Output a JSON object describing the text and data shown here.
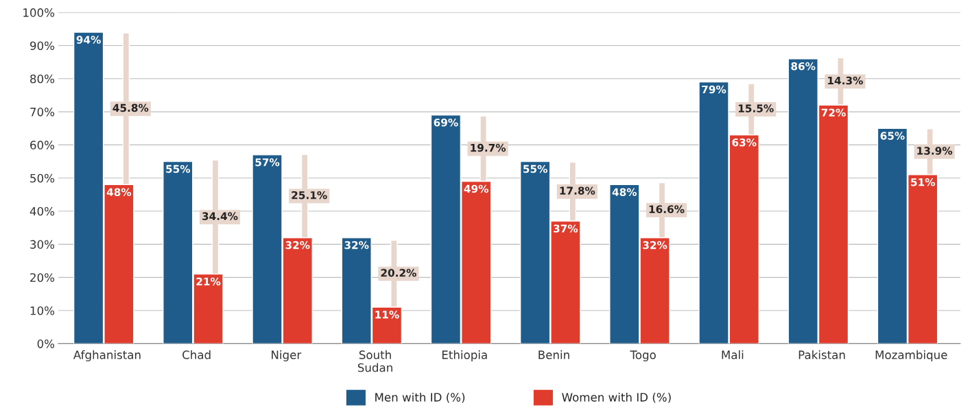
{
  "chart_data": {
    "type": "bar",
    "categories": [
      "Afghanistan",
      "Chad",
      "Niger",
      "South\nSudan",
      "Ethiopia",
      "Benin",
      "Togo",
      "Mali",
      "Pakistan",
      "Mozambique"
    ],
    "series": [
      {
        "name": "Men with ID (%)",
        "color": "#1f5c8b",
        "values": [
          94,
          55,
          57,
          32,
          69,
          55,
          48,
          79,
          86,
          65
        ],
        "value_labels": [
          "94%",
          "55%",
          "57%",
          "32%",
          "69%",
          "55%",
          "48%",
          "79%",
          "86%",
          "65%"
        ]
      },
      {
        "name": "Women with ID (%)",
        "color": "#e03c2e",
        "values": [
          48,
          21,
          32,
          11,
          49,
          37,
          32,
          63,
          72,
          51
        ],
        "value_labels": [
          "48%",
          "21%",
          "32%",
          "11%",
          "49%",
          "37%",
          "32%",
          "63%",
          "72%",
          "51%"
        ]
      },
      {
        "type": "bar",
        "color": "#e8d5cc",
        "base": [
          48,
          21,
          32,
          11,
          49,
          37,
          32,
          63,
          72,
          51
        ],
        "values": [
          45.8,
          34.4,
          25.1,
          20.2,
          19.7,
          17.8,
          16.6,
          15.5,
          14.3,
          13.9
        ],
        "value_labels": [
          "45.8%",
          "34.4%",
          "25.1%",
          "20.2%",
          "19.7%",
          "17.8%",
          "16.6%",
          "15.5%",
          "14.3%",
          "13.9%"
        ]
      }
    ],
    "ylim": [
      0,
      100
    ],
    "yticks": [
      {
        "value": 0,
        "label": "0%"
      },
      {
        "value": 10,
        "label": "10%"
      },
      {
        "value": 20,
        "label": "20%"
      },
      {
        "value": 30,
        "label": "30%"
      },
      {
        "value": 40,
        "label": "40%"
      },
      {
        "value": 50,
        "label": "50%"
      },
      {
        "value": 60,
        "label": "60%"
      },
      {
        "value": 70,
        "label": "70%"
      },
      {
        "value": 80,
        "label": "80%"
      },
      {
        "value": 90,
        "label": "90%"
      },
      {
        "value": 100,
        "label": "100%"
      }
    ],
    "grid": "y",
    "legend": "bottom"
  }
}
